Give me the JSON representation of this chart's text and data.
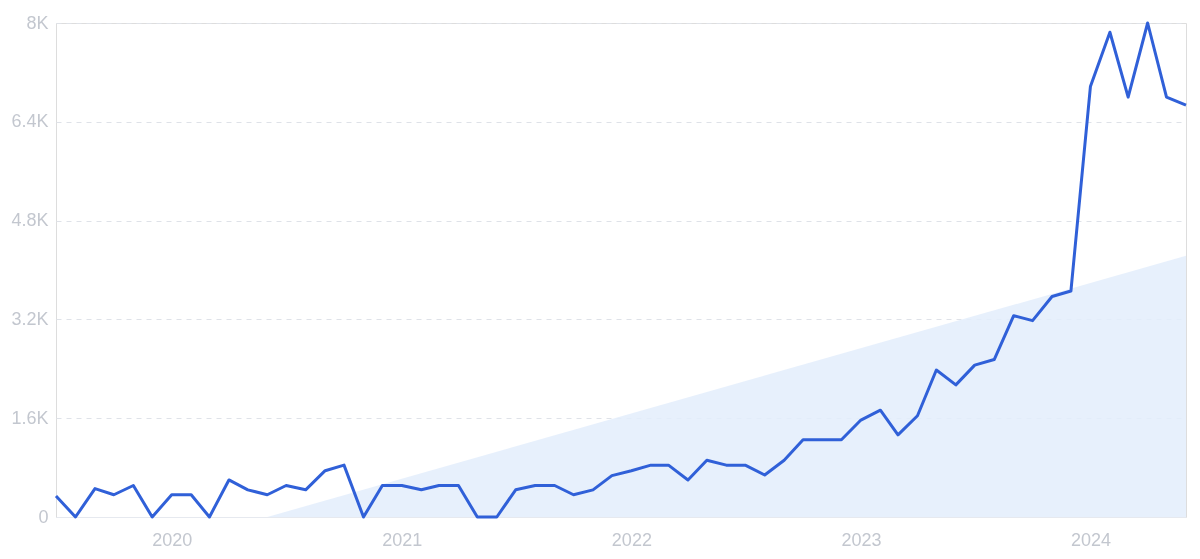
{
  "chart_data": {
    "type": "line",
    "x": [
      "2019-07",
      "2019-08",
      "2019-09",
      "2019-10",
      "2019-11",
      "2019-12",
      "2020-01",
      "2020-02",
      "2020-03",
      "2020-04",
      "2020-05",
      "2020-06",
      "2020-07",
      "2020-08",
      "2020-09",
      "2020-10",
      "2020-11",
      "2020-12",
      "2021-01",
      "2021-02",
      "2021-03",
      "2021-04",
      "2021-05",
      "2021-06",
      "2021-07",
      "2021-08",
      "2021-09",
      "2021-10",
      "2021-11",
      "2021-12",
      "2022-01",
      "2022-02",
      "2022-03",
      "2022-04",
      "2022-05",
      "2022-06",
      "2022-07",
      "2022-08",
      "2022-09",
      "2022-10",
      "2022-11",
      "2022-12",
      "2023-01",
      "2023-02",
      "2023-03",
      "2023-04",
      "2023-05",
      "2023-06",
      "2023-07",
      "2023-08",
      "2023-09",
      "2023-10",
      "2023-11",
      "2023-12",
      "2024-01",
      "2024-02",
      "2024-03",
      "2024-04",
      "2024-05",
      "2024-06"
    ],
    "series": [
      {
        "type": "area",
        "color": "#e3edfb",
        "x": [
          "2020-06",
          "2024-06"
        ],
        "values": [
          0,
          4230
        ]
      },
      {
        "color": "#3060d8",
        "values": [
          340,
          0,
          460,
          360,
          510,
          0,
          360,
          360,
          0,
          600,
          440,
          360,
          510,
          440,
          750,
          840,
          0,
          510,
          510,
          440,
          510,
          510,
          0,
          0,
          440,
          510,
          510,
          360,
          440,
          670,
          750,
          840,
          840,
          600,
          920,
          840,
          840,
          680,
          920,
          1250,
          1250,
          1250,
          1570,
          1730,
          1330,
          1640,
          2380,
          2140,
          2460,
          2550,
          3260,
          3180,
          3570,
          3660,
          6970,
          7850,
          6800,
          8000,
          6800,
          6670
        ]
      }
    ],
    "xlim": [
      "2019-07",
      "2024-06"
    ],
    "xticks": [
      {
        "value": "2020",
        "label": "2020"
      },
      {
        "value": "2021",
        "label": "2021"
      },
      {
        "value": "2022",
        "label": "2022"
      },
      {
        "value": "2023",
        "label": "2023"
      },
      {
        "value": "2024",
        "label": "2024"
      }
    ],
    "ylim": [
      0,
      8000
    ],
    "yticks": [
      0,
      {
        "value": 1600,
        "label": "1.6K"
      },
      {
        "value": 3200,
        "label": "3.2K"
      },
      {
        "value": 4800,
        "label": "4.8K"
      },
      {
        "value": 6400,
        "label": "6.4K"
      },
      {
        "value": 8000,
        "label": "8K"
      }
    ],
    "grid": "y",
    "line_style": "solid",
    "marker": "none"
  }
}
